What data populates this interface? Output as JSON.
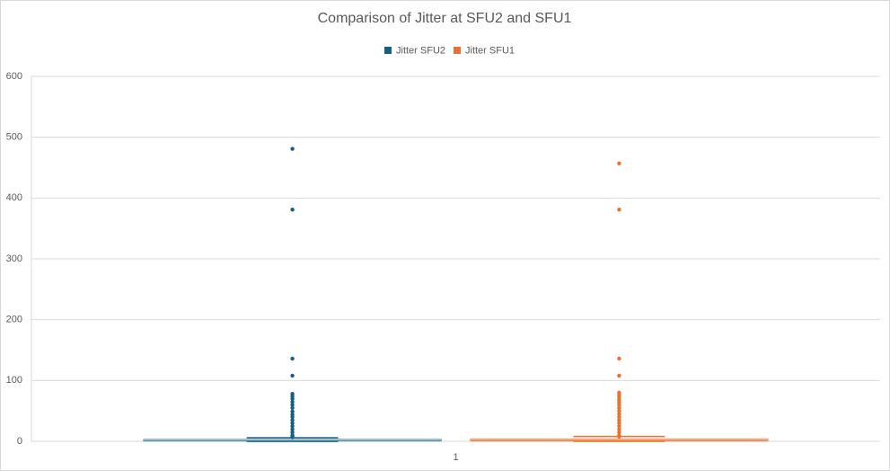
{
  "chart_data": {
    "type": "box",
    "title": "Comparison of Jitter at SFU2 and SFU1",
    "categories": [
      "1"
    ],
    "series": [
      {
        "name": "Jitter SFU2",
        "color": "#156082",
        "min": 0,
        "q1": 1,
        "median": 2,
        "q3": 3,
        "max": 6,
        "outliers": [
          481,
          381,
          136,
          108,
          78,
          74,
          70,
          65,
          60,
          55,
          49,
          44,
          40,
          35,
          30,
          25,
          20,
          15,
          10,
          8
        ]
      },
      {
        "name": "Jitter SFU1",
        "color": "#e97132",
        "min": 0,
        "q1": 1,
        "median": 3,
        "q3": 4,
        "max": 8,
        "outliers": [
          457,
          381,
          136,
          108,
          80,
          76,
          72,
          68,
          64,
          60,
          55,
          50,
          45,
          40,
          35,
          30,
          25,
          20,
          15,
          10,
          8
        ]
      }
    ],
    "ylim": [
      0,
      600
    ],
    "yticks": [
      0,
      100,
      200,
      300,
      400,
      500,
      600
    ],
    "grid": true,
    "legend": "top"
  }
}
